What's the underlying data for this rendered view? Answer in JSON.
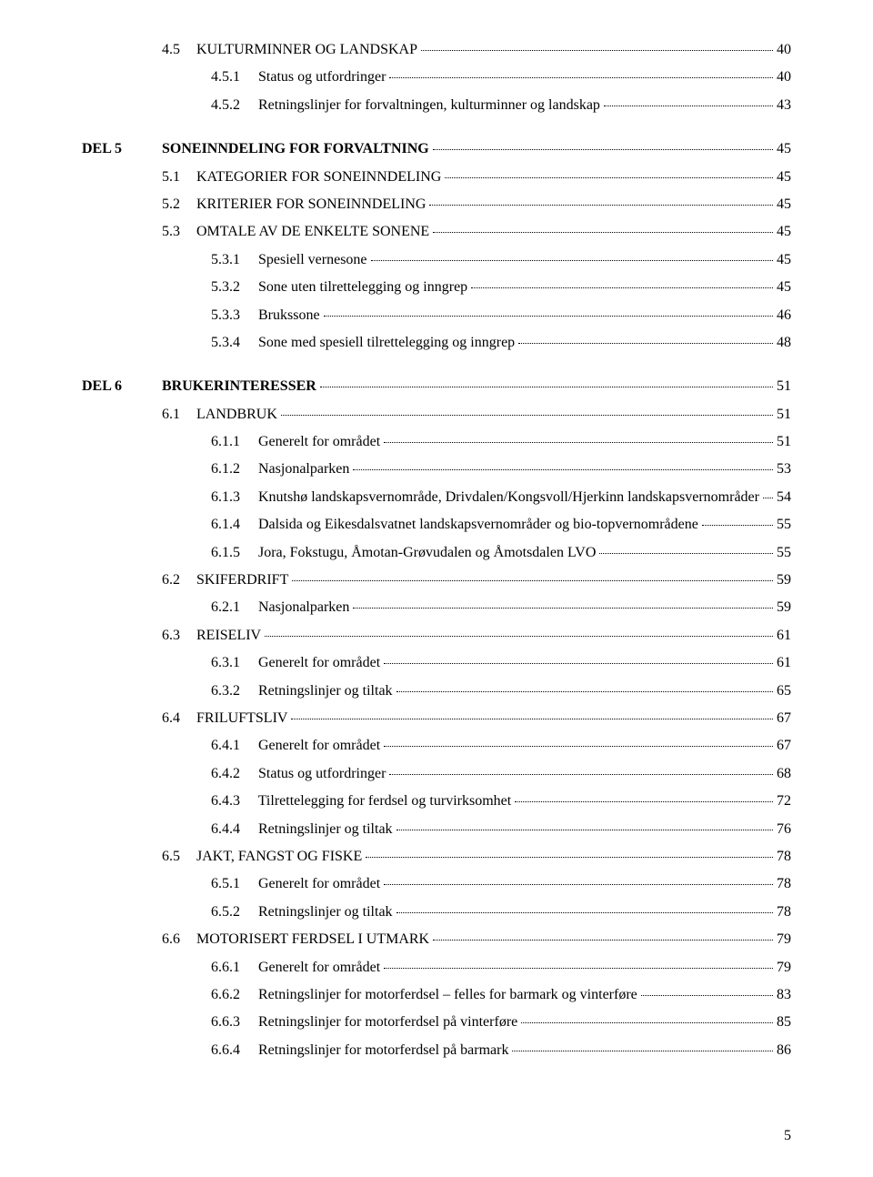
{
  "colors": {
    "text": "#000000",
    "background": "#ffffff"
  },
  "typography": {
    "font_family": "Georgia, Times New Roman, serif",
    "base_size_pt": 12,
    "line_height": 1.9
  },
  "page_number": "5",
  "sections": [
    {
      "type": "continuation",
      "lines": [
        {
          "level": 2,
          "num": "4.5",
          "title": "KULTURMINNER OG LANDSKAP",
          "page": "40",
          "caps": true
        },
        {
          "level": 3,
          "num": "4.5.1",
          "title": "Status og utfordringer",
          "page": "40"
        },
        {
          "level": 3,
          "num": "4.5.2",
          "title": "Retningslinjer for forvaltningen, kulturminner og landskap",
          "page": "43"
        }
      ]
    },
    {
      "type": "del",
      "del": "DEL 5",
      "title": "SONEINNDELING FOR FORVALTNING",
      "title_page": "45",
      "lines": [
        {
          "level": 2,
          "num": "5.1",
          "title": "KATEGORIER FOR SONEINNDELING",
          "page": "45",
          "caps": true
        },
        {
          "level": 2,
          "num": "5.2",
          "title": "KRITERIER FOR SONEINNDELING",
          "page": "45",
          "caps": true
        },
        {
          "level": 2,
          "num": "5.3",
          "title": "OMTALE AV DE ENKELTE SONENE",
          "page": "45",
          "caps": true
        },
        {
          "level": 3,
          "num": "5.3.1",
          "title": "Spesiell vernesone",
          "page": "45"
        },
        {
          "level": 3,
          "num": "5.3.2",
          "title": "Sone uten tilrettelegging og inngrep",
          "page": "45"
        },
        {
          "level": 3,
          "num": "5.3.3",
          "title": "Brukssone",
          "page": "46"
        },
        {
          "level": 3,
          "num": "5.3.4",
          "title": "Sone med spesiell tilrettelegging og inngrep",
          "page": "48"
        }
      ]
    },
    {
      "type": "del",
      "del": "DEL 6",
      "title": "BRUKERINTERESSER",
      "title_page": "51",
      "lines": [
        {
          "level": 2,
          "num": "6.1",
          "title": "LANDBRUK",
          "page": "51",
          "caps": true
        },
        {
          "level": 3,
          "num": "6.1.1",
          "title": "Generelt for området",
          "page": "51"
        },
        {
          "level": 3,
          "num": "6.1.2",
          "title": "Nasjonalparken",
          "page": "53"
        },
        {
          "level": 3,
          "num": "6.1.3",
          "title": "Knutshø landskapsvernområde, Drivdalen/Kongsvoll/Hjerkinn landskapsvernområder",
          "page": "54"
        },
        {
          "level": 3,
          "num": "6.1.4",
          "title": "Dalsida og Eikesdalsvatnet landskapsvernområder og bio-topvernområdene",
          "page": "55"
        },
        {
          "level": 3,
          "num": "6.1.5",
          "title": "Jora, Fokstugu, Åmotan-Grøvudalen og Åmotsdalen LVO",
          "page": "55"
        },
        {
          "level": 2,
          "num": "6.2",
          "title": "SKIFERDRIFT",
          "page": "59",
          "caps": true
        },
        {
          "level": 3,
          "num": "6.2.1",
          "title": "Nasjonalparken",
          "page": "59"
        },
        {
          "level": 2,
          "num": "6.3",
          "title": "REISELIV",
          "page": "61",
          "caps": true
        },
        {
          "level": 3,
          "num": "6.3.1",
          "title": "Generelt for området",
          "page": "61"
        },
        {
          "level": 3,
          "num": "6.3.2",
          "title": "Retningslinjer og tiltak",
          "page": "65"
        },
        {
          "level": 2,
          "num": "6.4",
          "title": "FRILUFTSLIV",
          "page": "67",
          "caps": true
        },
        {
          "level": 3,
          "num": "6.4.1",
          "title": "Generelt for området",
          "page": "67"
        },
        {
          "level": 3,
          "num": "6.4.2",
          "title": "Status og utfordringer",
          "page": "68"
        },
        {
          "level": 3,
          "num": "6.4.3",
          "title": "Tilrettelegging for ferdsel og turvirksomhet",
          "page": "72"
        },
        {
          "level": 3,
          "num": "6.4.4",
          "title": "Retningslinjer og tiltak",
          "page": "76"
        },
        {
          "level": 2,
          "num": "6.5",
          "title": "JAKT, FANGST OG FISKE",
          "page": "78",
          "caps": true
        },
        {
          "level": 3,
          "num": "6.5.1",
          "title": "Generelt for området",
          "page": "78"
        },
        {
          "level": 3,
          "num": "6.5.2",
          "title": "Retningslinjer og tiltak",
          "page": "78"
        },
        {
          "level": 2,
          "num": "6.6",
          "title": "MOTORISERT FERDSEL I UTMARK",
          "page": "79",
          "caps": true
        },
        {
          "level": 3,
          "num": "6.6.1",
          "title": "Generelt for området",
          "page": "79"
        },
        {
          "level": 3,
          "num": "6.6.2",
          "title": "Retningslinjer for motorferdsel – felles for barmark og vinterføre",
          "page": "83"
        },
        {
          "level": 3,
          "num": "6.6.3",
          "title": "Retningslinjer for motorferdsel på vinterføre",
          "page": "85"
        },
        {
          "level": 3,
          "num": "6.6.4",
          "title": "Retningslinjer for motorferdsel på barmark",
          "page": "86"
        }
      ]
    }
  ]
}
